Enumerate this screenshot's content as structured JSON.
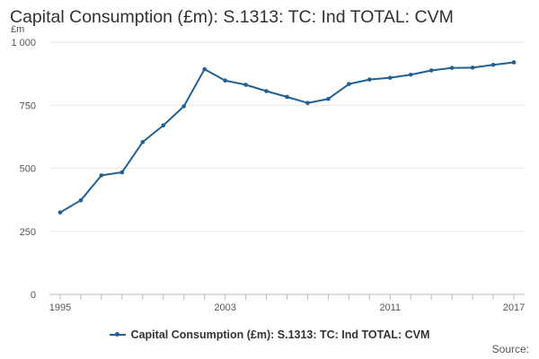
{
  "chart_data": {
    "type": "line",
    "title": "Capital Consumption (£m): S.1313: TC: Ind TOTAL: CVM",
    "ylabel": "£m",
    "xlabel": "",
    "x": [
      1995,
      1996,
      1997,
      1998,
      1999,
      2000,
      2001,
      2002,
      2003,
      2004,
      2005,
      2006,
      2007,
      2008,
      2009,
      2010,
      2011,
      2012,
      2013,
      2014,
      2015,
      2016,
      2017
    ],
    "series": [
      {
        "name": "Capital Consumption (£m): S.1313: TC: Ind TOTAL: CVM",
        "color": "#206095",
        "values": [
          325,
          373,
          472,
          484,
          604,
          670,
          746,
          893,
          848,
          831,
          806,
          783,
          759,
          775,
          834,
          852,
          859,
          871,
          888,
          898,
          899,
          910,
          920
        ]
      }
    ],
    "ylim": [
      0,
      1000
    ],
    "xlim": [
      1995,
      2017
    ],
    "yticks": [
      0,
      250,
      500,
      750,
      1000
    ],
    "ytick_labels": [
      "0",
      "250",
      "500",
      "750",
      "1 000"
    ],
    "xticks": [
      1995,
      2003,
      2011,
      2017
    ],
    "xtick_labels": [
      "1995",
      "2003",
      "2011",
      "2017"
    ],
    "grid": true,
    "legend": "bottom"
  },
  "source_label": "Source:"
}
